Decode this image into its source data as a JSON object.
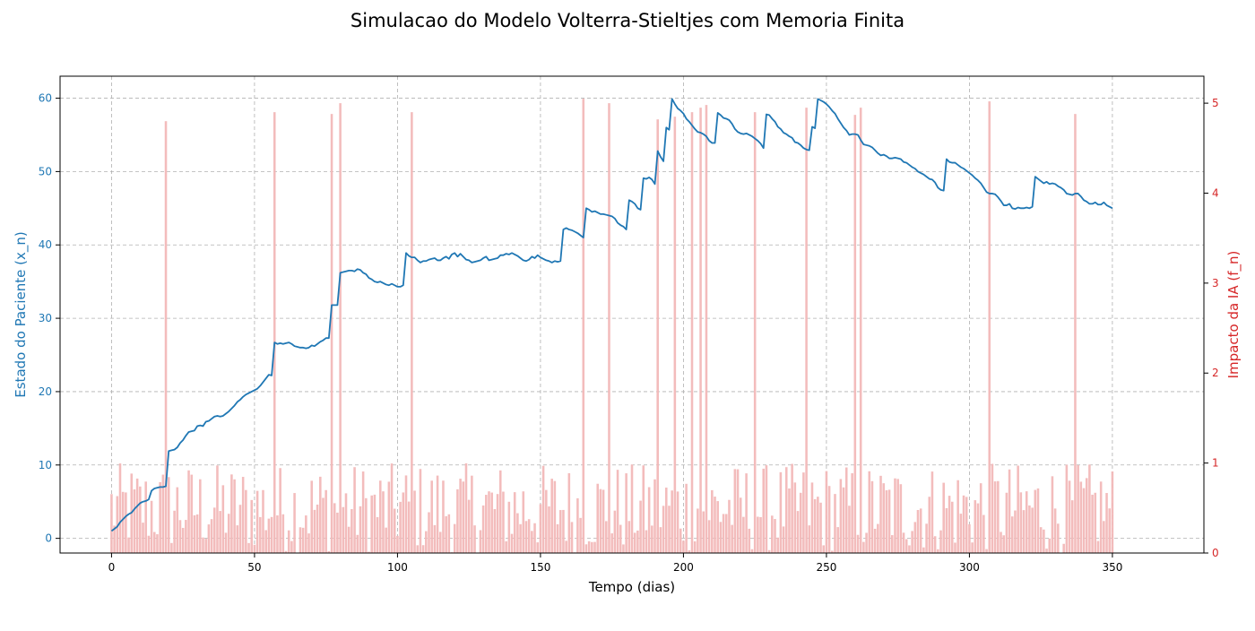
{
  "chart_data": {
    "type": "line",
    "title": "Simulacao do Modelo Volterra-Stieltjes com Memoria Finita",
    "xlabel": "Tempo (dias)",
    "ylabel_left": "Estado do Paciente (x_n)",
    "ylabel_right": "Impacto da IA (f_n)",
    "xlim": [
      -18,
      382
    ],
    "ylim_left": [
      -2,
      63
    ],
    "ylim_right": [
      0,
      5.3
    ],
    "x_ticks": [
      "0",
      "50",
      "100",
      "150",
      "200",
      "250",
      "300",
      "350"
    ],
    "y_left_ticks": [
      "0",
      "10",
      "20",
      "30",
      "40",
      "50",
      "60"
    ],
    "y_right_ticks": [
      "0",
      "1",
      "2",
      "3",
      "4",
      "5"
    ],
    "grid": true,
    "colors": {
      "line": "#1f77b4",
      "bars": "#f2b8b8",
      "right_axis": "#d62728"
    },
    "series": [
      {
        "axis": "left",
        "kind": "line",
        "x_start": 0,
        "step": 1,
        "values": [
          1.0,
          1.3,
          1.6,
          2.2,
          2.6,
          3.0,
          3.3,
          3.5,
          4.0,
          4.4,
          4.8,
          5.0,
          5.1,
          5.3,
          6.5,
          6.8,
          6.9,
          7.0,
          7.0,
          7.1,
          11.9,
          12.0,
          12.1,
          12.4,
          13.0,
          13.4,
          14.0,
          14.5,
          14.6,
          14.7,
          15.3,
          15.4,
          15.3,
          15.9,
          16.0,
          16.3,
          16.6,
          16.7,
          16.6,
          16.7,
          17.0,
          17.3,
          17.7,
          18.1,
          18.6,
          18.9,
          19.3,
          19.6,
          19.8,
          20.0,
          20.2,
          20.4,
          20.8,
          21.3,
          21.8,
          22.3,
          22.2,
          26.7,
          26.5,
          26.6,
          26.5,
          26.6,
          26.7,
          26.5,
          26.2,
          26.1,
          26.0,
          26.0,
          25.9,
          26.0,
          26.3,
          26.2,
          26.5,
          26.8,
          27.0,
          27.3,
          27.3,
          31.8,
          31.8,
          31.8,
          36.2,
          36.3,
          36.4,
          36.5,
          36.5,
          36.4,
          36.7,
          36.6,
          36.2,
          36.0,
          35.5,
          35.3,
          35.0,
          34.9,
          35.0,
          34.8,
          34.6,
          34.5,
          34.7,
          34.5,
          34.3,
          34.3,
          34.5,
          38.9,
          38.5,
          38.3,
          38.3,
          37.9,
          37.6,
          37.8,
          37.8,
          38.0,
          38.1,
          38.2,
          37.9,
          37.9,
          38.2,
          38.4,
          38.1,
          38.7,
          38.9,
          38.4,
          38.8,
          38.4,
          38.0,
          37.9,
          37.6,
          37.7,
          37.8,
          37.9,
          38.2,
          38.4,
          37.9,
          38.0,
          38.1,
          38.2,
          38.6,
          38.6,
          38.8,
          38.7,
          38.9,
          38.7,
          38.5,
          38.2,
          37.9,
          37.8,
          38.0,
          38.4,
          38.2,
          38.6,
          38.3,
          38.1,
          37.9,
          37.8,
          37.6,
          37.8,
          37.7,
          37.8,
          42.1,
          42.3,
          42.1,
          42.0,
          41.8,
          41.6,
          41.3,
          41.0,
          45.0,
          44.8,
          44.5,
          44.6,
          44.4,
          44.2,
          44.2,
          44.1,
          44.0,
          43.9,
          43.6,
          43.0,
          42.7,
          42.5,
          42.1,
          46.1,
          45.9,
          45.6,
          45.0,
          44.8,
          49.1,
          49.0,
          49.2,
          48.9,
          48.3,
          52.8,
          52.0,
          51.4,
          56.0,
          55.7,
          59.9,
          59.2,
          58.6,
          58.3,
          57.9,
          57.2,
          56.8,
          56.3,
          55.8,
          55.4,
          55.3,
          55.1,
          54.8,
          54.2,
          53.9,
          53.9,
          58.0,
          57.7,
          57.3,
          57.2,
          57.0,
          56.5,
          55.8,
          55.4,
          55.2,
          55.1,
          55.2,
          55.0,
          54.8,
          54.5,
          54.2,
          53.8,
          53.2,
          57.8,
          57.7,
          57.2,
          56.8,
          56.1,
          55.8,
          55.3,
          55.1,
          54.8,
          54.6,
          54.0,
          53.9,
          53.6,
          53.2,
          53.0,
          52.9,
          56.1,
          55.9,
          59.9,
          59.7,
          59.5,
          59.2,
          58.8,
          58.3,
          57.9,
          57.2,
          56.6,
          56.0,
          55.6,
          55.0,
          55.1,
          55.1,
          55.0,
          54.3,
          53.7,
          53.6,
          53.5,
          53.3,
          52.9,
          52.5,
          52.2,
          52.3,
          52.1,
          51.8,
          51.8,
          51.9,
          51.8,
          51.7,
          51.3,
          51.2,
          50.9,
          50.6,
          50.4,
          50.0,
          49.8,
          49.6,
          49.3,
          49.0,
          48.9,
          48.5,
          47.8,
          47.5,
          47.4,
          51.7,
          51.3,
          51.2,
          51.2,
          50.9,
          50.6,
          50.4,
          50.1,
          49.8,
          49.5,
          49.1,
          48.8,
          48.4,
          47.8,
          47.2,
          47.0,
          47.0,
          46.9,
          46.5,
          46.0,
          45.4,
          45.4,
          45.6,
          45.0,
          44.9,
          45.1,
          45.0,
          45.0,
          45.1,
          45.0,
          45.2,
          49.3,
          49.0,
          48.7,
          48.4,
          48.6,
          48.3,
          48.4,
          48.3,
          48.0,
          47.8,
          47.5,
          47.0,
          46.9,
          46.8,
          47.0,
          47.0,
          46.6,
          46.1,
          45.9,
          45.6,
          45.6,
          45.8,
          45.5,
          45.5,
          45.8,
          45.4,
          45.2,
          45.0
        ]
      },
      {
        "axis": "right",
        "kind": "bar",
        "spikes": [
          [
            19,
            4.8
          ],
          [
            57,
            4.9
          ],
          [
            77,
            4.88
          ],
          [
            80,
            5.0
          ],
          [
            105,
            4.9
          ],
          [
            165,
            5.05
          ],
          [
            174,
            5.0
          ],
          [
            191,
            4.82
          ],
          [
            197,
            4.85
          ],
          [
            203,
            4.9
          ],
          [
            206,
            4.95
          ],
          [
            208,
            4.98
          ],
          [
            225,
            4.9
          ],
          [
            243,
            4.95
          ],
          [
            260,
            4.87
          ],
          [
            262,
            4.95
          ],
          [
            307,
            5.02
          ],
          [
            337,
            4.88
          ]
        ]
      }
    ]
  }
}
